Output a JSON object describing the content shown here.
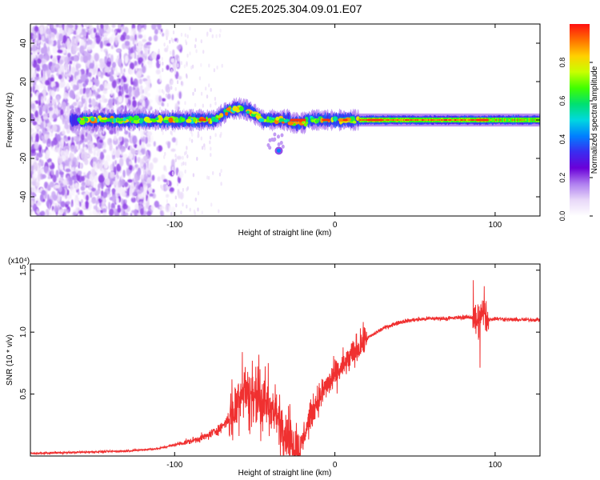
{
  "title": "C2E5.2025.304.09.01.E07",
  "chart_data": [
    {
      "type": "heatmap",
      "name": "spectrogram",
      "xlabel": "Height of straight line (km)",
      "ylabel": "Frequency (Hz)",
      "xlim": [
        -190,
        128
      ],
      "ylim": [
        -50,
        50
      ],
      "xticks": [
        -100,
        0,
        100
      ],
      "yticks": [
        -40,
        -20,
        0,
        20,
        40
      ],
      "colorbar": {
        "label": "Normalized spectral amplitude",
        "range": [
          0,
          1
        ],
        "ticks": [
          0.0,
          0.2,
          0.4,
          0.6,
          0.8
        ],
        "tick_labels": [
          "0.0",
          "0.2",
          "0.4",
          "0.6",
          "0.8"
        ],
        "colors": [
          "#ffffff",
          "#e8d8f8",
          "#b080f0",
          "#6a00d8",
          "#3a2cf0",
          "#0080ff",
          "#00d8e0",
          "#00e070",
          "#40ff00",
          "#c8ff00",
          "#ffd000",
          "#ff7000",
          "#ff1010"
        ]
      },
      "features": {
        "noise_region_x": [
          -190,
          -115
        ],
        "main_band_x": [
          -160,
          128
        ],
        "main_band_center_hz": 0,
        "upper_lobe_x": [
          -75,
          -45
        ],
        "upper_lobe_hz": [
          2,
          10
        ],
        "lower_blob": {
          "x": -35,
          "hz": -16
        },
        "strong_line_x": [
          15,
          128
        ]
      }
    },
    {
      "type": "line",
      "name": "snr",
      "xlabel": "Height of straight line (km)",
      "ylabel": "SNR (10 * v/v)",
      "scale_label": "(x10⁴)",
      "xlim": [
        -190,
        128
      ],
      "ylim": [
        0,
        1.55
      ],
      "xticks": [
        -100,
        0,
        100
      ],
      "yticks": [
        0.5,
        1.0,
        1.5
      ],
      "ytick_labels": [
        "0.5",
        "1.0",
        "1.5"
      ],
      "color": "#f03030",
      "series": [
        {
          "name": "SNR",
          "x": [
            -190,
            -160,
            -130,
            -120,
            -110,
            -100,
            -90,
            -80,
            -72,
            -66,
            -62,
            -60,
            -57,
            -52,
            -47,
            -42,
            -38,
            -34,
            -30,
            -26,
            -22,
            -18,
            -12,
            -6,
            0,
            5,
            10,
            15,
            20,
            30,
            40,
            50,
            60,
            70,
            80,
            86,
            90,
            92,
            95,
            100,
            110,
            120,
            128
          ],
          "y": [
            0.02,
            0.03,
            0.04,
            0.05,
            0.06,
            0.09,
            0.12,
            0.16,
            0.22,
            0.3,
            0.42,
            0.5,
            0.55,
            0.52,
            0.47,
            0.42,
            0.34,
            0.26,
            0.16,
            0.08,
            0.04,
            0.22,
            0.42,
            0.55,
            0.65,
            0.72,
            0.8,
            0.88,
            0.95,
            1.03,
            1.08,
            1.1,
            1.11,
            1.11,
            1.12,
            1.12,
            1.1,
            1.15,
            1.1,
            1.11,
            1.1,
            1.1,
            1.1
          ]
        }
      ]
    }
  ]
}
